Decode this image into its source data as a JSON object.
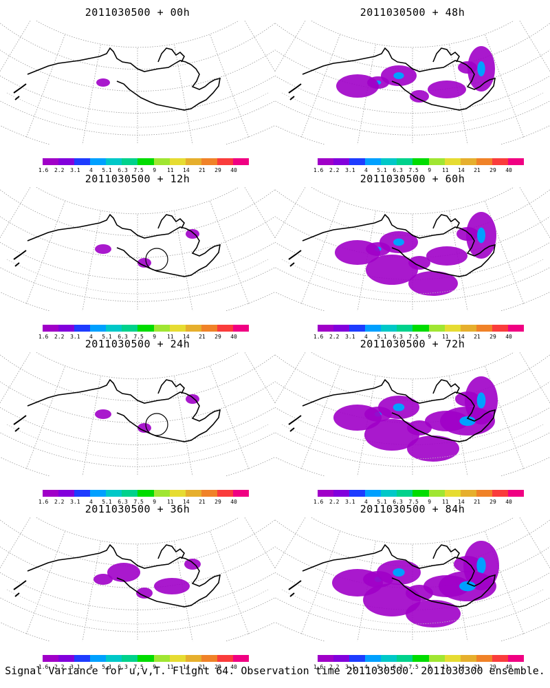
{
  "caption": "Signal Variance for u,v,T. Flight 64. Observation time 2011030500. 2011030300 ensemble.",
  "colorbar": {
    "colors": [
      "#a000c8",
      "#8200dc",
      "#1e3cff",
      "#00a0ff",
      "#00c8c8",
      "#00d28c",
      "#00dc00",
      "#a0e632",
      "#e6dc32",
      "#e6af2d",
      "#f08228",
      "#fa3c3c",
      "#f00082"
    ],
    "labels": [
      "1.6",
      "2.2",
      "3.1",
      "4",
      "5.1",
      "6.3",
      "7.5",
      "9",
      "11",
      "14",
      "21",
      "29",
      "40"
    ]
  },
  "panels": [
    {
      "id": "p00",
      "title": "2011030500 + 00h",
      "intensity": 0
    },
    {
      "id": "p48",
      "title": "2011030500 + 48h",
      "intensity": 3
    },
    {
      "id": "p12",
      "title": "2011030500 + 12h",
      "intensity": 1
    },
    {
      "id": "p60",
      "title": "2011030500 + 60h",
      "intensity": 4
    },
    {
      "id": "p24",
      "title": "2011030500 + 24h",
      "intensity": 1
    },
    {
      "id": "p72",
      "title": "2011030500 + 72h",
      "intensity": 5
    },
    {
      "id": "p36",
      "title": "2011030500 + 36h",
      "intensity": 2
    },
    {
      "id": "p84",
      "title": "2011030500 + 84h",
      "intensity": 6
    }
  ]
}
